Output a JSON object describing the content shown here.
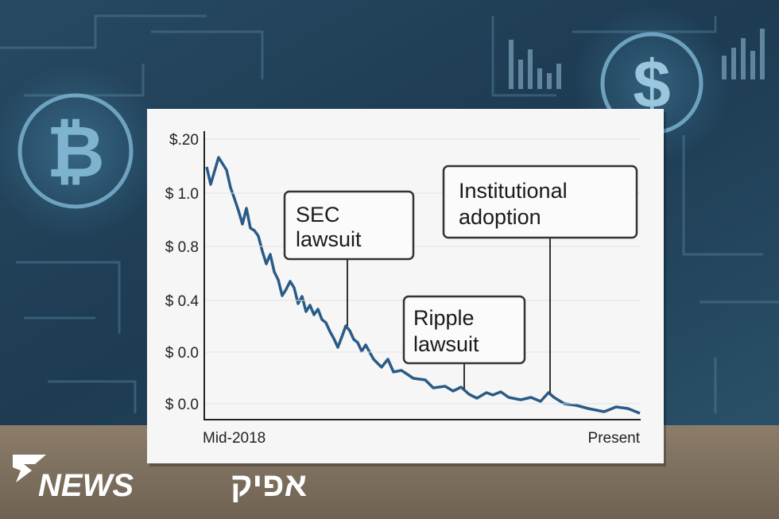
{
  "card": {
    "y_labels": [
      "$.20",
      "$ 1.0",
      "$ 0.8",
      "$ 0.4",
      "$ 0.0",
      "$ 0.0"
    ],
    "x_labels": [
      "Mid-2018",
      "Present"
    ],
    "annotations": [
      [
        "SEC",
        "lawsuit"
      ],
      [
        "Institutional",
        "adoption"
      ],
      [
        "Ripple",
        "lawsuit"
      ]
    ]
  },
  "watermark": {
    "brand": "NEWS",
    "name": "אפיק"
  }
}
